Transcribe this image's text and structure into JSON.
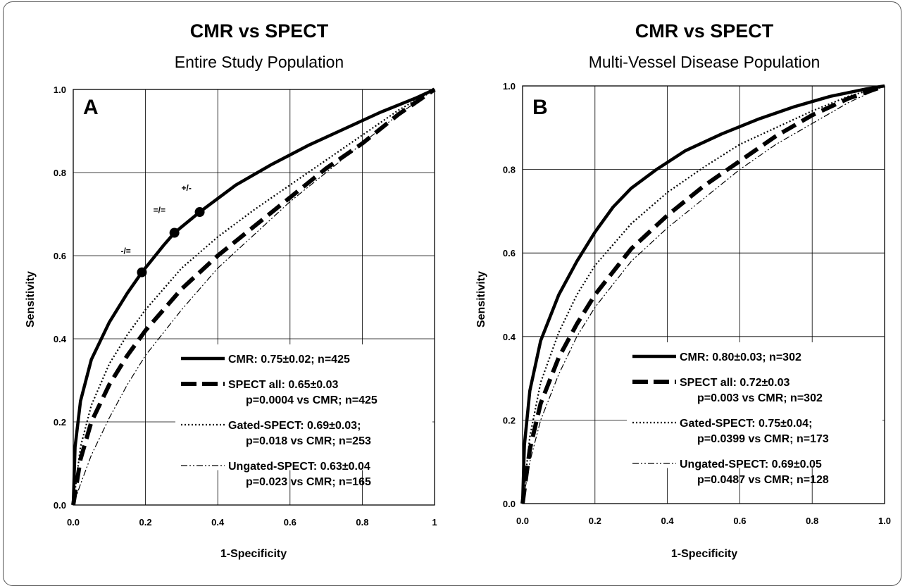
{
  "chart_data": [
    {
      "type": "line",
      "title": "CMR vs SPECT",
      "subtitle": "Entire Study Population",
      "panel_letter": "A",
      "xlabel": "1-Specificity",
      "ylabel": "Sensitivity",
      "xlim": [
        0,
        1
      ],
      "ylim": [
        0,
        1
      ],
      "xticks": [
        "0.0",
        "0.2",
        "0.4",
        "0.6",
        "0.8",
        "1"
      ],
      "yticks": [
        "0.0",
        "0.2",
        "0.4",
        "0.6",
        "0.8",
        "1.0"
      ],
      "grid": true,
      "legend_position": "bottom-right",
      "series": [
        {
          "key": "cmr",
          "style": "solid",
          "legend": [
            "CMR: 0.75±0.02; n=425"
          ],
          "x": [
            0,
            0.005,
            0.02,
            0.05,
            0.1,
            0.15,
            0.19,
            0.25,
            0.28,
            0.35,
            0.45,
            0.55,
            0.65,
            0.75,
            0.85,
            0.95,
            1.0
          ],
          "y": [
            0,
            0.14,
            0.25,
            0.35,
            0.44,
            0.51,
            0.56,
            0.625,
            0.655,
            0.705,
            0.77,
            0.82,
            0.865,
            0.905,
            0.945,
            0.98,
            1.0
          ]
        },
        {
          "key": "spect_all",
          "style": "thick-dash",
          "legend": [
            "SPECT all: 0.65±0.03",
            "p=0.0004 vs CMR; n=425"
          ],
          "x": [
            0,
            0.02,
            0.05,
            0.1,
            0.15,
            0.2,
            0.3,
            0.4,
            0.5,
            0.6,
            0.7,
            0.8,
            0.9,
            1.0
          ],
          "y": [
            0,
            0.11,
            0.2,
            0.29,
            0.36,
            0.42,
            0.52,
            0.6,
            0.67,
            0.74,
            0.81,
            0.87,
            0.94,
            1.0
          ]
        },
        {
          "key": "gated_spect",
          "style": "dotted",
          "legend": [
            "Gated-SPECT: 0.69±0.03;",
            "p=0.018 vs CMR; n=253"
          ],
          "x": [
            0,
            0.02,
            0.05,
            0.1,
            0.15,
            0.2,
            0.3,
            0.4,
            0.5,
            0.6,
            0.7,
            0.8,
            0.9,
            1.0
          ],
          "y": [
            0,
            0.14,
            0.24,
            0.34,
            0.41,
            0.47,
            0.57,
            0.645,
            0.71,
            0.77,
            0.83,
            0.89,
            0.95,
            1.0
          ]
        },
        {
          "key": "ungated_spect",
          "style": "dash-dot",
          "legend": [
            "Ungated-SPECT: 0.63±0.04",
            "p=0.023 vs CMR; n=165"
          ],
          "x": [
            0,
            0.02,
            0.05,
            0.1,
            0.15,
            0.2,
            0.3,
            0.4,
            0.5,
            0.6,
            0.7,
            0.8,
            0.9,
            1.0
          ],
          "y": [
            0,
            0.05,
            0.12,
            0.21,
            0.29,
            0.36,
            0.47,
            0.57,
            0.65,
            0.73,
            0.8,
            0.87,
            0.94,
            1.0
          ]
        }
      ],
      "annotations": [
        {
          "label": "-/=",
          "x": 0.19,
          "y": 0.56
        },
        {
          "label": "=/=",
          "x": 0.28,
          "y": 0.655
        },
        {
          "label": "+/-",
          "x": 0.35,
          "y": 0.705
        }
      ]
    },
    {
      "type": "line",
      "title": "CMR vs SPECT",
      "subtitle": "Multi-Vessel Disease Population",
      "panel_letter": "B",
      "xlabel": "1-Specificity",
      "ylabel": "Sensitivity",
      "xlim": [
        0,
        1
      ],
      "ylim": [
        0,
        1
      ],
      "xticks": [
        "0.0",
        "0.2",
        "0.4",
        "0.6",
        "0.8",
        "1.0"
      ],
      "yticks": [
        "0.0",
        "0.2",
        "0.4",
        "0.6",
        "0.8",
        "1.0"
      ],
      "grid": true,
      "legend_position": "bottom-right",
      "series": [
        {
          "key": "cmr",
          "style": "solid",
          "legend": [
            "CMR: 0.80±0.03; n=302"
          ],
          "x": [
            0,
            0.005,
            0.02,
            0.05,
            0.1,
            0.15,
            0.2,
            0.25,
            0.3,
            0.37,
            0.45,
            0.55,
            0.65,
            0.75,
            0.85,
            0.95,
            1.0
          ],
          "y": [
            0,
            0.14,
            0.27,
            0.39,
            0.5,
            0.58,
            0.65,
            0.71,
            0.755,
            0.8,
            0.845,
            0.885,
            0.92,
            0.95,
            0.975,
            0.993,
            1.0
          ]
        },
        {
          "key": "spect_all",
          "style": "thick-dash",
          "legend": [
            "SPECT all: 0.72±0.03",
            "p=0.003 vs CMR; n=302"
          ],
          "x": [
            0,
            0.02,
            0.05,
            0.1,
            0.15,
            0.2,
            0.3,
            0.4,
            0.5,
            0.6,
            0.7,
            0.8,
            0.9,
            1.0
          ],
          "y": [
            0,
            0.13,
            0.24,
            0.35,
            0.43,
            0.5,
            0.61,
            0.69,
            0.76,
            0.82,
            0.88,
            0.93,
            0.97,
            1.0
          ]
        },
        {
          "key": "gated_spect",
          "style": "dotted",
          "legend": [
            "Gated-SPECT: 0.75±0.04;",
            "p=0.0399 vs CMR; n=173"
          ],
          "x": [
            0,
            0.02,
            0.05,
            0.1,
            0.15,
            0.2,
            0.3,
            0.4,
            0.5,
            0.6,
            0.7,
            0.8,
            0.9,
            1.0
          ],
          "y": [
            0,
            0.16,
            0.29,
            0.41,
            0.5,
            0.57,
            0.67,
            0.745,
            0.805,
            0.86,
            0.9,
            0.94,
            0.975,
            1.0
          ]
        },
        {
          "key": "ungated_spect",
          "style": "dash-dot",
          "legend": [
            "Ungated-SPECT: 0.69±0.05",
            "p=0.0487 vs CMR; n=128"
          ],
          "x": [
            0,
            0.02,
            0.05,
            0.1,
            0.15,
            0.2,
            0.3,
            0.4,
            0.5,
            0.6,
            0.7,
            0.8,
            0.9,
            1.0
          ],
          "y": [
            0,
            0.1,
            0.2,
            0.31,
            0.4,
            0.47,
            0.58,
            0.66,
            0.73,
            0.8,
            0.86,
            0.91,
            0.96,
            1.0
          ]
        }
      ],
      "annotations": []
    }
  ]
}
